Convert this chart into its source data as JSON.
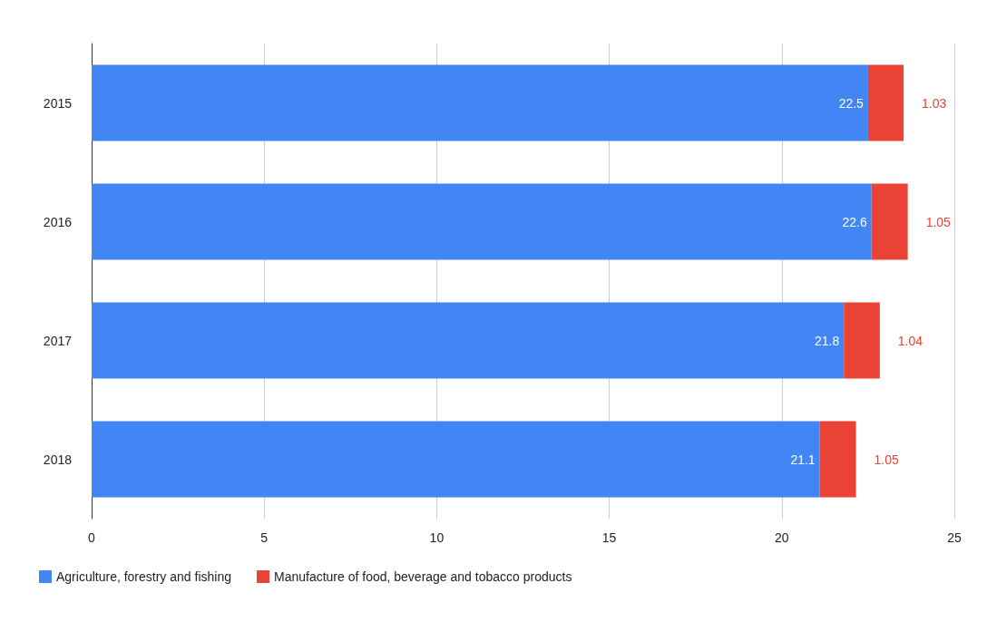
{
  "chart_data": {
    "type": "bar",
    "orientation": "horizontal",
    "stacked": true,
    "categories": [
      "2015",
      "2016",
      "2017",
      "2018"
    ],
    "series": [
      {
        "name": "Agriculture, forestry and fishing",
        "color": "#4285f4",
        "values": [
          22.5,
          22.6,
          21.8,
          21.1
        ]
      },
      {
        "name": "Manufacture of food, beverage and tobacco products",
        "color": "#ea4335",
        "values": [
          1.03,
          1.05,
          1.04,
          1.05
        ]
      }
    ],
    "xlim": [
      0,
      25
    ],
    "xticks": [
      0,
      5,
      10,
      15,
      20,
      25
    ],
    "grid": "x",
    "legend": "bottom left",
    "data_labels": true
  }
}
